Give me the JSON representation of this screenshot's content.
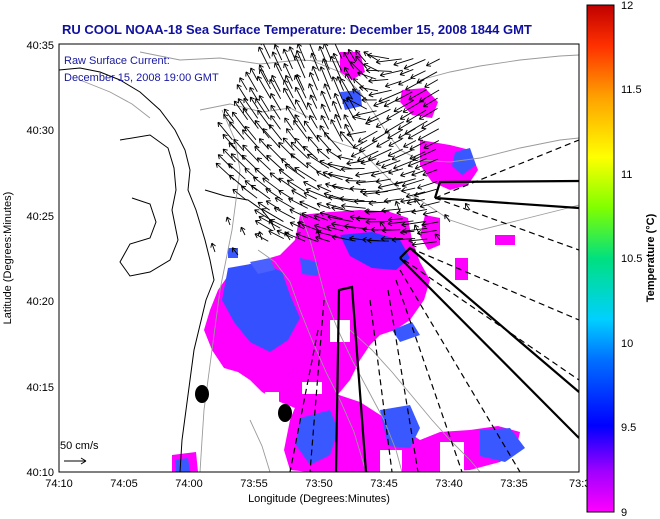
{
  "title": "RU COOL  NOAA-18  Sea Surface Temperature:  December 15, 2008 1844 GMT",
  "overlay": {
    "line1": "Raw Surface Current:",
    "line2": "December 15, 2008 19:00 GMT"
  },
  "scale_label": "50 cm/s",
  "axes": {
    "xlabel": "Longitude (Degrees:Minutes)",
    "ylabel": "Latitude (Degrees:Minutes)",
    "xticks": [
      "74:10",
      "74:05",
      "74:00",
      "73:55",
      "73:50",
      "73:45",
      "73:40",
      "73:35",
      "73:3"
    ],
    "yticks": [
      "40:35",
      "40:30",
      "40:25",
      "40:20",
      "40:15",
      "40:10"
    ]
  },
  "colorbar": {
    "label": "Temperature (°C)",
    "ticks": [
      "12",
      "11.5",
      "11",
      "10.5",
      "10",
      "9.5",
      "9"
    ],
    "min": 9,
    "max": 12
  },
  "colors": {
    "title": "#1010a0",
    "sst_cold": "#ff00ff",
    "sst_warm": "#0000ff"
  }
}
